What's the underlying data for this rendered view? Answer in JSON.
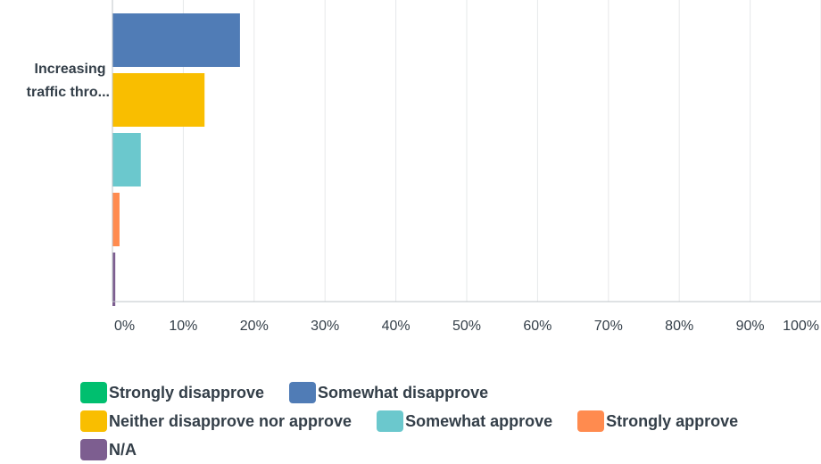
{
  "chart_data": {
    "type": "bar",
    "orientation": "horizontal",
    "categories": [
      "Increasing traffic thro..."
    ],
    "category_label_lines": [
      "Increasing",
      "traffic thro..."
    ],
    "series": [
      {
        "name": "Strongly disapprove",
        "color": "#00bf6f",
        "values": [
          0
        ]
      },
      {
        "name": "Somewhat disapprove",
        "color": "#507cb6",
        "values": [
          18
        ]
      },
      {
        "name": "Neither disapprove nor approve",
        "color": "#f9be00",
        "values": [
          13
        ]
      },
      {
        "name": "Somewhat approve",
        "color": "#6bc8cd",
        "values": [
          4
        ]
      },
      {
        "name": "Strongly approve",
        "color": "#ff8b4f",
        "values": [
          1
        ]
      },
      {
        "name": "N/A",
        "color": "#7d5e90",
        "values": [
          0.4
        ]
      }
    ],
    "xlim": [
      0,
      100
    ],
    "x_ticks": [
      0,
      10,
      20,
      30,
      40,
      50,
      60,
      70,
      80,
      90,
      100
    ],
    "x_tick_labels": [
      "0%",
      "10%",
      "20%",
      "30%",
      "40%",
      "50%",
      "60%",
      "70%",
      "80%",
      "90%",
      "100%"
    ],
    "grid": true,
    "legend_position": "bottom",
    "title": "",
    "xlabel": "",
    "ylabel": ""
  }
}
